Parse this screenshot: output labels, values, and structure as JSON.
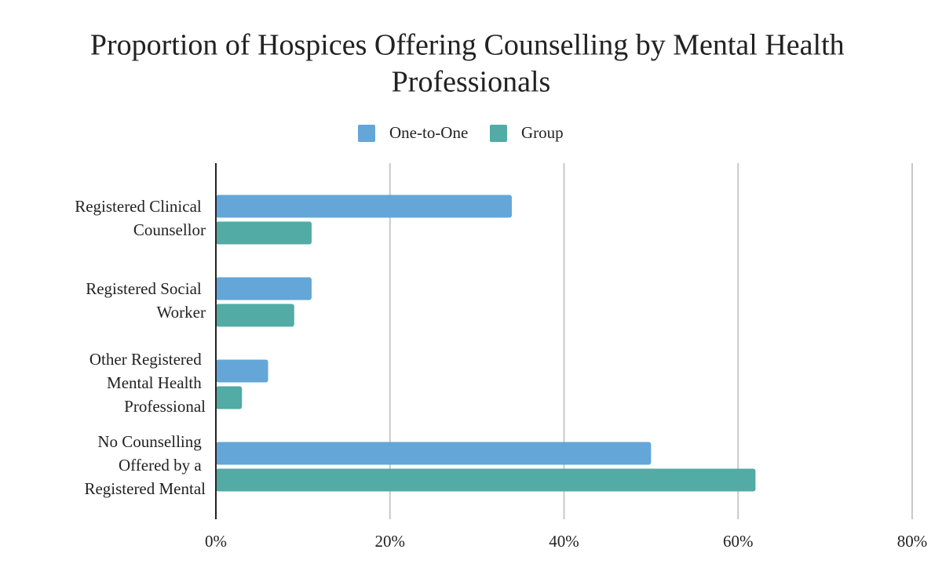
{
  "chart_data": {
    "type": "bar",
    "orientation": "horizontal",
    "title": "Proportion of Hospices Offering Counselling by Mental Health Professionals",
    "categories": [
      "Registered Clinical Counsellor",
      "Registered Social Worker",
      "Other Registered Mental Health Professional",
      "No Counselling Offered by a Registered Mental"
    ],
    "series": [
      {
        "name": "One-to-One",
        "color": "#64a6d8",
        "values": [
          34,
          11,
          6,
          50
        ]
      },
      {
        "name": "Group",
        "color": "#52aba5",
        "values": [
          11,
          9,
          3,
          62
        ]
      }
    ],
    "xlim": [
      0,
      80
    ],
    "xticks": [
      {
        "value": 0,
        "label": "0%"
      },
      {
        "value": 20,
        "label": "20%"
      },
      {
        "value": 40,
        "label": "40%"
      },
      {
        "value": 60,
        "label": "60%"
      },
      {
        "value": 80,
        "label": "80%"
      }
    ],
    "grid": true,
    "legend": "top"
  }
}
